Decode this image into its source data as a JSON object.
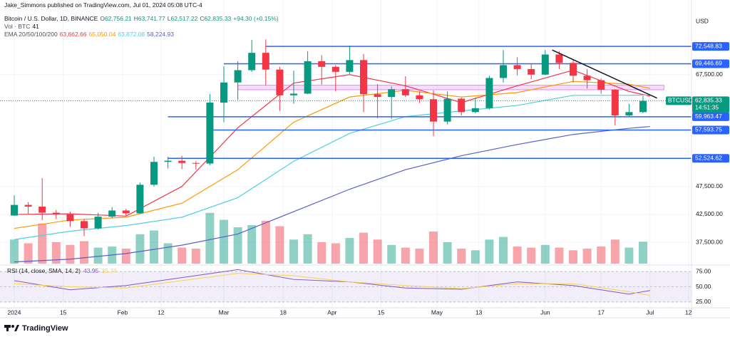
{
  "publisher": "Jake_Simmons published on TradingView.com, Jul 01, 2024 05:08 UTC-4",
  "footer": "TradingView",
  "chart_data": {
    "type": "candlestick",
    "title": "Bitcoin / U.S. Dollar, 1D, BINANCE",
    "ohlc": [
      {
        "key": "O",
        "label": "62,756.21"
      },
      {
        "key": "H",
        "label": "63,741.77"
      },
      {
        "key": "L",
        "label": "62,517.22"
      },
      {
        "key": "C",
        "label": "62,835.33"
      }
    ],
    "change": "+94.30 (+0.15%)",
    "currency": "USD",
    "up_color": "#089981",
    "down_color": "#f23645",
    "grid": true,
    "ylim": [
      33700,
      78300
    ],
    "yticks": [
      {
        "value": 37500,
        "label": "37,500.00"
      },
      {
        "value": 42500,
        "label": "42,500.00"
      },
      {
        "value": 47500,
        "label": "47,500.00"
      },
      {
        "value": 67500,
        "label": "67,500.00"
      }
    ],
    "xticks": [
      {
        "value": "2024-01-01",
        "label": "2024"
      },
      {
        "value": "2024-01-15",
        "label": "15"
      },
      {
        "value": "2024-02-01",
        "label": "Feb"
      },
      {
        "value": "2024-02-12",
        "label": "12"
      },
      {
        "value": "2024-03-01",
        "label": "Mar"
      },
      {
        "value": "2024-03-18",
        "label": "18"
      },
      {
        "value": "2024-04-01",
        "label": "Apr"
      },
      {
        "value": "2024-04-15",
        "label": "15"
      },
      {
        "value": "2024-05-01",
        "label": "May"
      },
      {
        "value": "2024-05-13",
        "label": "13"
      },
      {
        "value": "2024-06-01",
        "label": "Jun"
      },
      {
        "value": "2024-06-17",
        "label": "17"
      },
      {
        "value": "2024-07-01",
        "label": "Jul"
      },
      {
        "value": "2024-07-12",
        "label": "12"
      }
    ],
    "candles": {
      "x": [
        "2024-01-01",
        "2024-01-05",
        "2024-01-09",
        "2024-01-13",
        "2024-01-17",
        "2024-01-21",
        "2024-01-25",
        "2024-01-29",
        "2024-02-02",
        "2024-02-06",
        "2024-02-10",
        "2024-02-14",
        "2024-02-18",
        "2024-02-22",
        "2024-02-26",
        "2024-03-01",
        "2024-03-05",
        "2024-03-09",
        "2024-03-13",
        "2024-03-17",
        "2024-03-21",
        "2024-03-25",
        "2024-03-29",
        "2024-04-02",
        "2024-04-06",
        "2024-04-10",
        "2024-04-14",
        "2024-04-18",
        "2024-04-22",
        "2024-04-26",
        "2024-04-30",
        "2024-05-04",
        "2024-05-08",
        "2024-05-12",
        "2024-05-16",
        "2024-05-20",
        "2024-05-24",
        "2024-05-28",
        "2024-06-01",
        "2024-06-05",
        "2024-06-09",
        "2024-06-13",
        "2024-06-17",
        "2024-06-21",
        "2024-06-25",
        "2024-06-29"
      ],
      "open": [
        42300,
        44200,
        43900,
        42800,
        42500,
        41300,
        40000,
        42100,
        43200,
        42700,
        47800,
        51900,
        52100,
        51700,
        51600,
        62500,
        66100,
        68300,
        71400,
        68400,
        63800,
        64100,
        69900,
        68900,
        68000,
        70100,
        64000,
        63500,
        64900,
        63800,
        63100,
        59100,
        63200,
        60800,
        61500,
        66900,
        69200,
        68500,
        67500,
        71100,
        69600,
        67300,
        66500,
        64800,
        60200,
        60800
      ],
      "high": [
        45900,
        44700,
        49000,
        43300,
        43000,
        41700,
        42800,
        43800,
        43500,
        48200,
        52800,
        52800,
        53000,
        52000,
        64000,
        69000,
        69900,
        73700,
        73800,
        68900,
        68200,
        71700,
        71000,
        69200,
        72700,
        71200,
        65800,
        65400,
        67200,
        64500,
        64700,
        64500,
        63400,
        63400,
        67300,
        71900,
        70600,
        69500,
        71900,
        71700,
        70200,
        68500,
        66800,
        64900,
        62300,
        63700
      ],
      "low": [
        42200,
        42600,
        41500,
        41700,
        40300,
        38600,
        39800,
        41800,
        42300,
        42600,
        47500,
        50700,
        50600,
        50500,
        51300,
        59000,
        63000,
        68000,
        65600,
        61000,
        62300,
        64000,
        65700,
        64500,
        67600,
        60800,
        59700,
        59600,
        63500,
        62400,
        56500,
        58600,
        60200,
        60600,
        61300,
        66100,
        67400,
        66700,
        67400,
        68500,
        66100,
        65000,
        64100,
        58400,
        59900,
        60600
      ],
      "close": [
        44200,
        43900,
        42800,
        42500,
        41300,
        40000,
        42100,
        43200,
        42700,
        47800,
        51900,
        52100,
        51700,
        51600,
        62500,
        66100,
        68300,
        71400,
        68400,
        63800,
        64100,
        69900,
        68900,
        68000,
        70100,
        64000,
        63500,
        64900,
        63800,
        63100,
        59100,
        63200,
        60800,
        61500,
        66900,
        69200,
        68500,
        67500,
        71100,
        69600,
        67300,
        66500,
        64800,
        60200,
        60800,
        62800
      ]
    },
    "volume": {
      "label": "Vol · BTC",
      "values": [
        45,
        38,
        75,
        40,
        35,
        42,
        30,
        32,
        28,
        55,
        62,
        38,
        30,
        28,
        95,
        82,
        68,
        72,
        80,
        70,
        45,
        55,
        40,
        38,
        48,
        58,
        45,
        35,
        30,
        28,
        60,
        40,
        28,
        25,
        45,
        50,
        32,
        30,
        35,
        30,
        25,
        28,
        32,
        45,
        30,
        41
      ]
    },
    "ema": {
      "label": "EMA 20/50/100/200",
      "x": [
        "2024-01-01",
        "2024-01-17",
        "2024-02-02",
        "2024-02-18",
        "2024-03-05",
        "2024-03-21",
        "2024-04-06",
        "2024-04-22",
        "2024-05-08",
        "2024-05-24",
        "2024-06-09",
        "2024-06-25",
        "2024-07-01"
      ],
      "series": [
        {
          "color": "#f23645",
          "value_label": "63,662.66",
          "values": [
            42500,
            42600,
            42200,
            47500,
            58000,
            66000,
            67500,
            65500,
            62500,
            65500,
            68300,
            64500,
            63662.66
          ]
        },
        {
          "color": "#ff9800",
          "value_label": "65,050.04",
          "values": [
            40000,
            41500,
            42000,
            44500,
            50500,
            59000,
            63500,
            64700,
            63500,
            64300,
            66300,
            65800,
            65050.04
          ]
        },
        {
          "color": "#4dd0e1",
          "value_label": "63,872.08",
          "values": [
            38000,
            39500,
            40500,
            42000,
            45500,
            52000,
            57000,
            60000,
            61000,
            62000,
            63800,
            63800,
            63872.08
          ]
        },
        {
          "color": "#5b5fc7",
          "value_label": "58,224.93",
          "values": [
            34000,
            34500,
            35500,
            37000,
            39000,
            43000,
            47000,
            50500,
            53000,
            55000,
            56800,
            57900,
            58224.93
          ]
        }
      ]
    },
    "levels": [
      {
        "value": 72548.83,
        "label": "72,548.83",
        "start": "2024-03-13"
      },
      {
        "value": 69446.69,
        "label": "69,446.69",
        "start": "2024-03-01"
      },
      {
        "value": 59963.47,
        "label": "59,963.47",
        "start": "2024-02-14"
      },
      {
        "value": 57593.75,
        "label": "57,593.75",
        "start": "2024-02-26"
      },
      {
        "value": 52524.62,
        "label": "52,524.62",
        "start": "2024-02-14"
      }
    ],
    "level_color": "#2962ff",
    "zone": {
      "from": "2024-03-05",
      "to": "2024-07-05",
      "low": 64800,
      "high": 65600,
      "color": "#e040fb"
    },
    "trendline": {
      "x": [
        "2024-06-03",
        "2024-07-03"
      ],
      "values": [
        71900,
        63300
      ]
    },
    "last_price": {
      "symbol": "BTCUSD",
      "value": 62835.33,
      "label": "62,835.33",
      "countdown": "14:51:35"
    },
    "rsi": {
      "label": "RSI (14, close, SMA, 14, 2)",
      "ylim": [
        18,
        82
      ],
      "yticks": [
        {
          "value": 75,
          "label": "75.00"
        },
        {
          "value": 50,
          "label": "50.00"
        },
        {
          "value": 25,
          "label": "25.00"
        }
      ],
      "x": [
        "2024-01-01",
        "2024-01-17",
        "2024-02-02",
        "2024-02-18",
        "2024-03-05",
        "2024-03-21",
        "2024-04-06",
        "2024-04-22",
        "2024-05-08",
        "2024-05-24",
        "2024-06-09",
        "2024-06-25",
        "2024-07-01"
      ],
      "series": [
        {
          "color": "#7e57c2",
          "values": [
            60,
            45,
            52,
            65,
            78,
            62,
            58,
            48,
            46,
            58,
            52,
            38,
            43.95
          ]
        },
        {
          "color": "#f7d154",
          "values": [
            55,
            50,
            48,
            60,
            72,
            68,
            58,
            52,
            47,
            55,
            55,
            42,
            35.74
          ]
        }
      ]
    }
  }
}
